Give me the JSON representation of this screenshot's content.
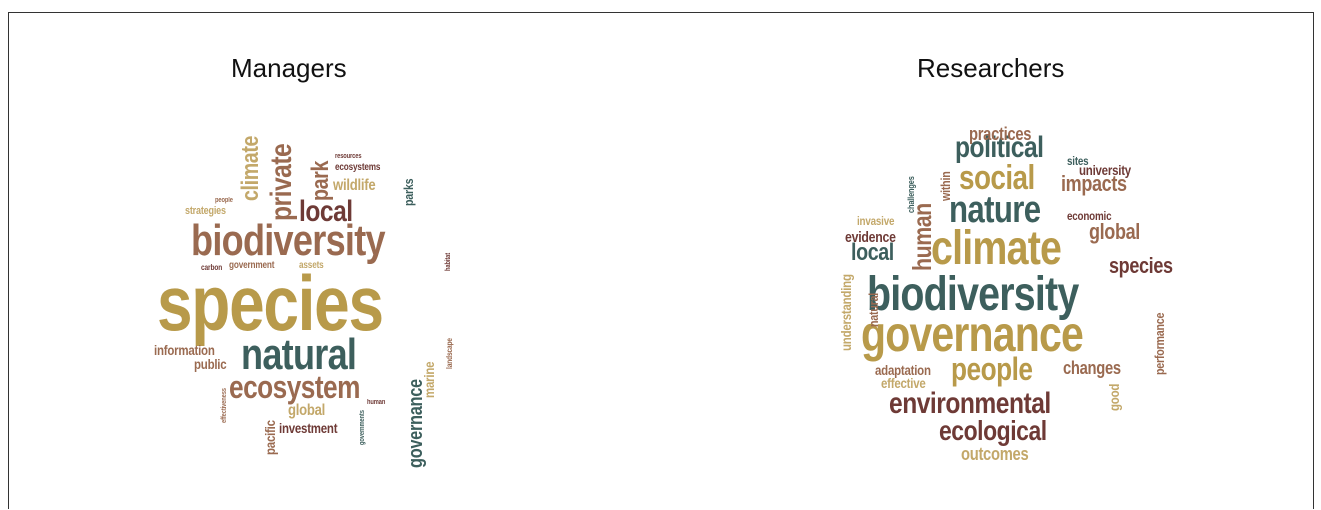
{
  "colors": {
    "gold": "#b89a4a",
    "brown": "#9a6a50",
    "maroon": "#6e3a36",
    "teal": "#3d5f5d",
    "sand": "#c3a86a"
  },
  "panels": [
    {
      "title": "Managers",
      "words": [
        {
          "text": "species",
          "color": "gold"
        },
        {
          "text": "biodiversity",
          "color": "brown"
        },
        {
          "text": "natural",
          "color": "teal"
        },
        {
          "text": "ecosystem",
          "color": "brown"
        },
        {
          "text": "local",
          "color": "maroon"
        },
        {
          "text": "private",
          "color": "brown"
        },
        {
          "text": "climate",
          "color": "sand"
        },
        {
          "text": "park",
          "color": "brown"
        },
        {
          "text": "wildlife",
          "color": "sand"
        },
        {
          "text": "governance",
          "color": "teal"
        },
        {
          "text": "marine",
          "color": "sand"
        },
        {
          "text": "information",
          "color": "brown"
        },
        {
          "text": "public",
          "color": "brown"
        },
        {
          "text": "global",
          "color": "sand"
        },
        {
          "text": "investment",
          "color": "maroon"
        },
        {
          "text": "pacific",
          "color": "brown"
        },
        {
          "text": "parks",
          "color": "teal"
        },
        {
          "text": "ecosystems",
          "color": "maroon"
        },
        {
          "text": "strategies",
          "color": "sand"
        },
        {
          "text": "government",
          "color": "brown"
        },
        {
          "text": "assets",
          "color": "sand"
        },
        {
          "text": "carbon",
          "color": "maroon"
        },
        {
          "text": "people",
          "color": "brown"
        },
        {
          "text": "resources",
          "color": "maroon"
        },
        {
          "text": "habitat",
          "color": "maroon"
        },
        {
          "text": "landscape",
          "color": "brown"
        },
        {
          "text": "human",
          "color": "maroon"
        },
        {
          "text": "effectiveness",
          "color": "brown"
        },
        {
          "text": "governments",
          "color": "teal"
        }
      ]
    },
    {
      "title": "Researchers",
      "words": [
        {
          "text": "biodiversity",
          "color": "teal"
        },
        {
          "text": "governance",
          "color": "gold"
        },
        {
          "text": "climate",
          "color": "gold"
        },
        {
          "text": "nature",
          "color": "teal"
        },
        {
          "text": "social",
          "color": "gold"
        },
        {
          "text": "political",
          "color": "teal"
        },
        {
          "text": "human",
          "color": "brown"
        },
        {
          "text": "people",
          "color": "gold"
        },
        {
          "text": "environmental",
          "color": "maroon"
        },
        {
          "text": "ecological",
          "color": "maroon"
        },
        {
          "text": "outcomes",
          "color": "sand"
        },
        {
          "text": "impacts",
          "color": "brown"
        },
        {
          "text": "global",
          "color": "brown"
        },
        {
          "text": "species",
          "color": "maroon"
        },
        {
          "text": "local",
          "color": "teal"
        },
        {
          "text": "practices",
          "color": "brown"
        },
        {
          "text": "university",
          "color": "maroon"
        },
        {
          "text": "sites",
          "color": "teal"
        },
        {
          "text": "economic",
          "color": "maroon"
        },
        {
          "text": "evidence",
          "color": "maroon"
        },
        {
          "text": "invasive",
          "color": "sand"
        },
        {
          "text": "challenges",
          "color": "teal"
        },
        {
          "text": "within",
          "color": "brown"
        },
        {
          "text": "understanding",
          "color": "sand"
        },
        {
          "text": "natural",
          "color": "brown"
        },
        {
          "text": "adaptation",
          "color": "brown"
        },
        {
          "text": "effective",
          "color": "sand"
        },
        {
          "text": "changes",
          "color": "brown"
        },
        {
          "text": "good",
          "color": "sand"
        },
        {
          "text": "performance",
          "color": "brown"
        }
      ]
    }
  ]
}
